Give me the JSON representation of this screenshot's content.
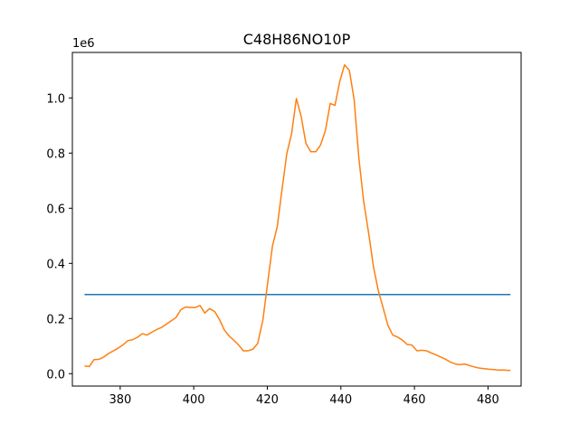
{
  "chart_data": {
    "type": "line",
    "title": "C48H86NO10P",
    "xlabel": "",
    "ylabel": "",
    "y_offset_label": "1e6",
    "xlim": [
      367,
      489
    ],
    "ylim": [
      -0.045,
      1.165
    ],
    "x_ticks": [
      380,
      400,
      420,
      440,
      460,
      480
    ],
    "y_ticks": [
      0.0,
      0.2,
      0.4,
      0.6,
      0.8,
      1.0
    ],
    "y_tick_labels": [
      "0.0",
      "0.2",
      "0.4",
      "0.6",
      "0.8",
      "1.0"
    ],
    "grid": false,
    "series": [
      {
        "color": "#1f77b4",
        "x": [
          370.3,
          486.1
        ],
        "y": [
          0.287,
          0.287
        ]
      },
      {
        "color": "#ff7f0e",
        "x": [
          370.3,
          371.6,
          372.9,
          374.2,
          375.5,
          376.8,
          378.2,
          379.5,
          380.8,
          382.1,
          383.4,
          384.7,
          386.0,
          387.3,
          388.6,
          389.9,
          391.3,
          392.6,
          393.9,
          395.2,
          396.5,
          397.8,
          399.1,
          400.4,
          401.7,
          403.0,
          404.3,
          405.7,
          407.0,
          408.3,
          409.6,
          410.9,
          412.2,
          413.5,
          414.8,
          416.1,
          417.4,
          418.8,
          420.1,
          421.4,
          422.7,
          424.0,
          425.3,
          426.6,
          427.9,
          429.2,
          430.5,
          431.8,
          433.2,
          434.5,
          435.8,
          437.1,
          438.4,
          439.7,
          441.0,
          442.3,
          443.6,
          444.9,
          446.2,
          447.6,
          448.9,
          450.2,
          451.5,
          452.8,
          454.1,
          455.4,
          456.7,
          458.0,
          459.3,
          460.7,
          462.0,
          463.3,
          464.6,
          465.9,
          467.2,
          468.5,
          469.8,
          471.1,
          472.4,
          473.7,
          475.1,
          476.4,
          477.7,
          479.0,
          480.3,
          481.6,
          482.9,
          484.2,
          485.5,
          486.1
        ],
        "y": [
          0.028,
          0.026,
          0.051,
          0.052,
          0.06,
          0.073,
          0.083,
          0.093,
          0.105,
          0.12,
          0.123,
          0.132,
          0.145,
          0.14,
          0.15,
          0.16,
          0.168,
          0.18,
          0.192,
          0.204,
          0.232,
          0.242,
          0.24,
          0.24,
          0.247,
          0.22,
          0.236,
          0.225,
          0.196,
          0.159,
          0.137,
          0.121,
          0.104,
          0.083,
          0.083,
          0.089,
          0.11,
          0.195,
          0.33,
          0.463,
          0.533,
          0.668,
          0.798,
          0.87,
          0.998,
          0.933,
          0.835,
          0.805,
          0.805,
          0.83,
          0.882,
          0.98,
          0.973,
          1.06,
          1.12,
          1.1,
          0.995,
          0.78,
          0.625,
          0.505,
          0.385,
          0.3,
          0.238,
          0.175,
          0.14,
          0.133,
          0.122,
          0.106,
          0.104,
          0.083,
          0.085,
          0.083,
          0.075,
          0.068,
          0.06,
          0.052,
          0.042,
          0.035,
          0.033,
          0.035,
          0.029,
          0.024,
          0.02,
          0.018,
          0.016,
          0.015,
          0.013,
          0.013,
          0.012,
          0.012
        ]
      }
    ]
  }
}
